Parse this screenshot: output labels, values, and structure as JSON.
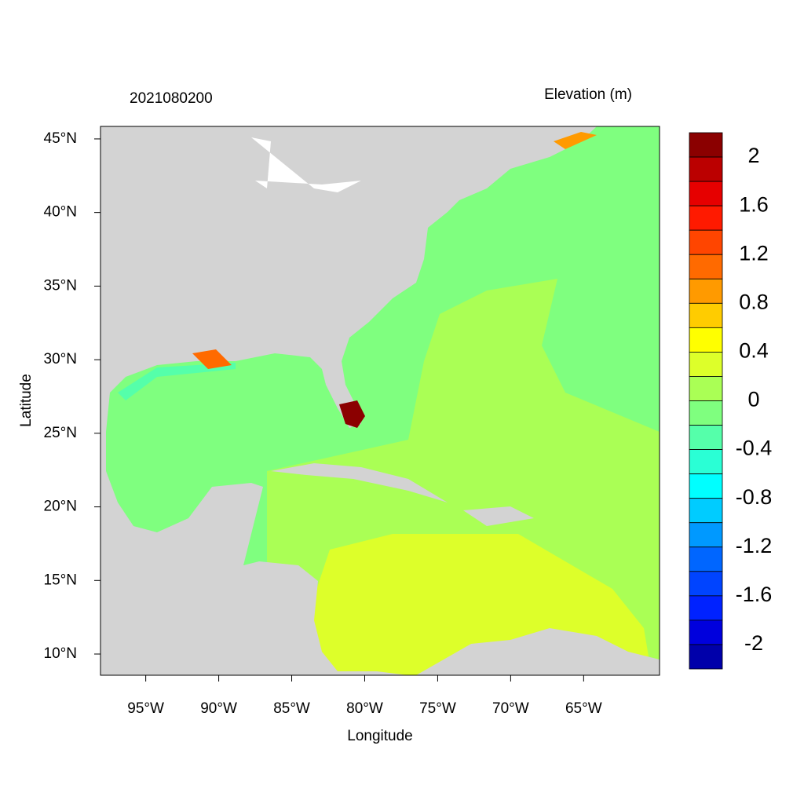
{
  "chart_data": {
    "type": "map",
    "title_left": "2021080200",
    "title_right": "Elevation (m)",
    "xlabel": "Longitude",
    "ylabel": "Latitude",
    "xlim": [
      -98.1,
      -59.8
    ],
    "ylim": [
      8.56,
      45.85
    ],
    "xticks": [
      {
        "value": -95,
        "label": "95°W"
      },
      {
        "value": -90,
        "label": "90°W"
      },
      {
        "value": -85,
        "label": "85°W"
      },
      {
        "value": -80,
        "label": "80°W"
      },
      {
        "value": -75,
        "label": "75°W"
      },
      {
        "value": -70,
        "label": "70°W"
      },
      {
        "value": -65,
        "label": "65°W"
      }
    ],
    "yticks": [
      {
        "value": 10,
        "label": "10°N"
      },
      {
        "value": 15,
        "label": "15°N"
      },
      {
        "value": 20,
        "label": "20°N"
      },
      {
        "value": 25,
        "label": "25°N"
      },
      {
        "value": 30,
        "label": "30°N"
      },
      {
        "value": 35,
        "label": "35°N"
      },
      {
        "value": 40,
        "label": "40°N"
      },
      {
        "value": 45,
        "label": "45°N"
      }
    ],
    "colorbar": {
      "clim": [
        -2.2,
        2.2
      ],
      "ticks": [
        2,
        1.6,
        1.2,
        0.8,
        0.4,
        0,
        -0.4,
        -0.8,
        -1.2,
        -1.6,
        -2
      ],
      "colors": [
        "#8b0000",
        "#bb0000",
        "#e60000",
        "#ff1a00",
        "#ff4500",
        "#ff6a00",
        "#ff9a00",
        "#ffcc00",
        "#ffff00",
        "#ddff2a",
        "#aaff55",
        "#7fff7f",
        "#55ffaa",
        "#2affd5",
        "#00ffff",
        "#00ccff",
        "#0099ff",
        "#0066ff",
        "#0044ff",
        "#0022ff",
        "#0000dd",
        "#0000aa"
      ]
    }
  }
}
